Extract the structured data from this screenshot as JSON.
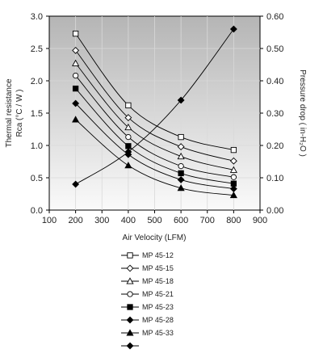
{
  "chart_data": {
    "type": "line",
    "xlabel": "Air Velocity (LFM)",
    "ylabel_left": [
      "Thermal resistance",
      "Rca (°C / W )"
    ],
    "ylabel_right": "Pressure drop ( in-H₂O )",
    "xlim": [
      100,
      900
    ],
    "xticks": [
      "100",
      "200",
      "300",
      "400",
      "500",
      "600",
      "700",
      "800",
      "900"
    ],
    "ylim_left": [
      0.0,
      3.0
    ],
    "yticks_left": [
      "0.0",
      "0.5",
      "1.0",
      "1.5",
      "2.0",
      "2.5",
      "3.0"
    ],
    "ylim_right": [
      0.0,
      0.6
    ],
    "yticks_right": [
      "0.00",
      "0.10",
      "0.20",
      "0.30",
      "0.40",
      "0.50",
      "0.60"
    ],
    "grid": true,
    "legend_position": "bottom",
    "x": [
      200,
      400,
      600,
      800
    ],
    "series": [
      {
        "name": "MP 45-12",
        "marker": "square-open",
        "axis": "left",
        "values": [
          2.73,
          1.62,
          1.13,
          0.93
        ]
      },
      {
        "name": "MP 45-15",
        "marker": "diamond-open",
        "axis": "left",
        "values": [
          2.47,
          1.43,
          0.98,
          0.76
        ]
      },
      {
        "name": "MP 45-18",
        "marker": "triangle-open",
        "axis": "left",
        "values": [
          2.27,
          1.28,
          0.83,
          0.62
        ]
      },
      {
        "name": "MP 45-21",
        "marker": "circle-open",
        "axis": "left",
        "values": [
          2.08,
          1.13,
          0.68,
          0.51
        ]
      },
      {
        "name": "MP 45-23",
        "marker": "square-filled",
        "axis": "left",
        "values": [
          1.88,
          0.99,
          0.57,
          0.41
        ]
      },
      {
        "name": "MP 45-28",
        "marker": "diamond-filled",
        "axis": "left",
        "values": [
          1.65,
          0.86,
          0.47,
          0.33
        ]
      },
      {
        "name": "MP 45-33",
        "marker": "triangle-filled",
        "axis": "left",
        "values": [
          1.4,
          0.69,
          0.34,
          0.23
        ]
      },
      {
        "name": "",
        "marker": "diamond-filled",
        "axis": "right",
        "values": [
          0.08,
          0.18,
          0.34,
          0.56
        ]
      }
    ]
  },
  "colors": {
    "plot_bg_top": "#b5b5b5",
    "plot_bg_bottom": "#fafafa",
    "grid": "#d9d9d9",
    "line": "#000000"
  }
}
